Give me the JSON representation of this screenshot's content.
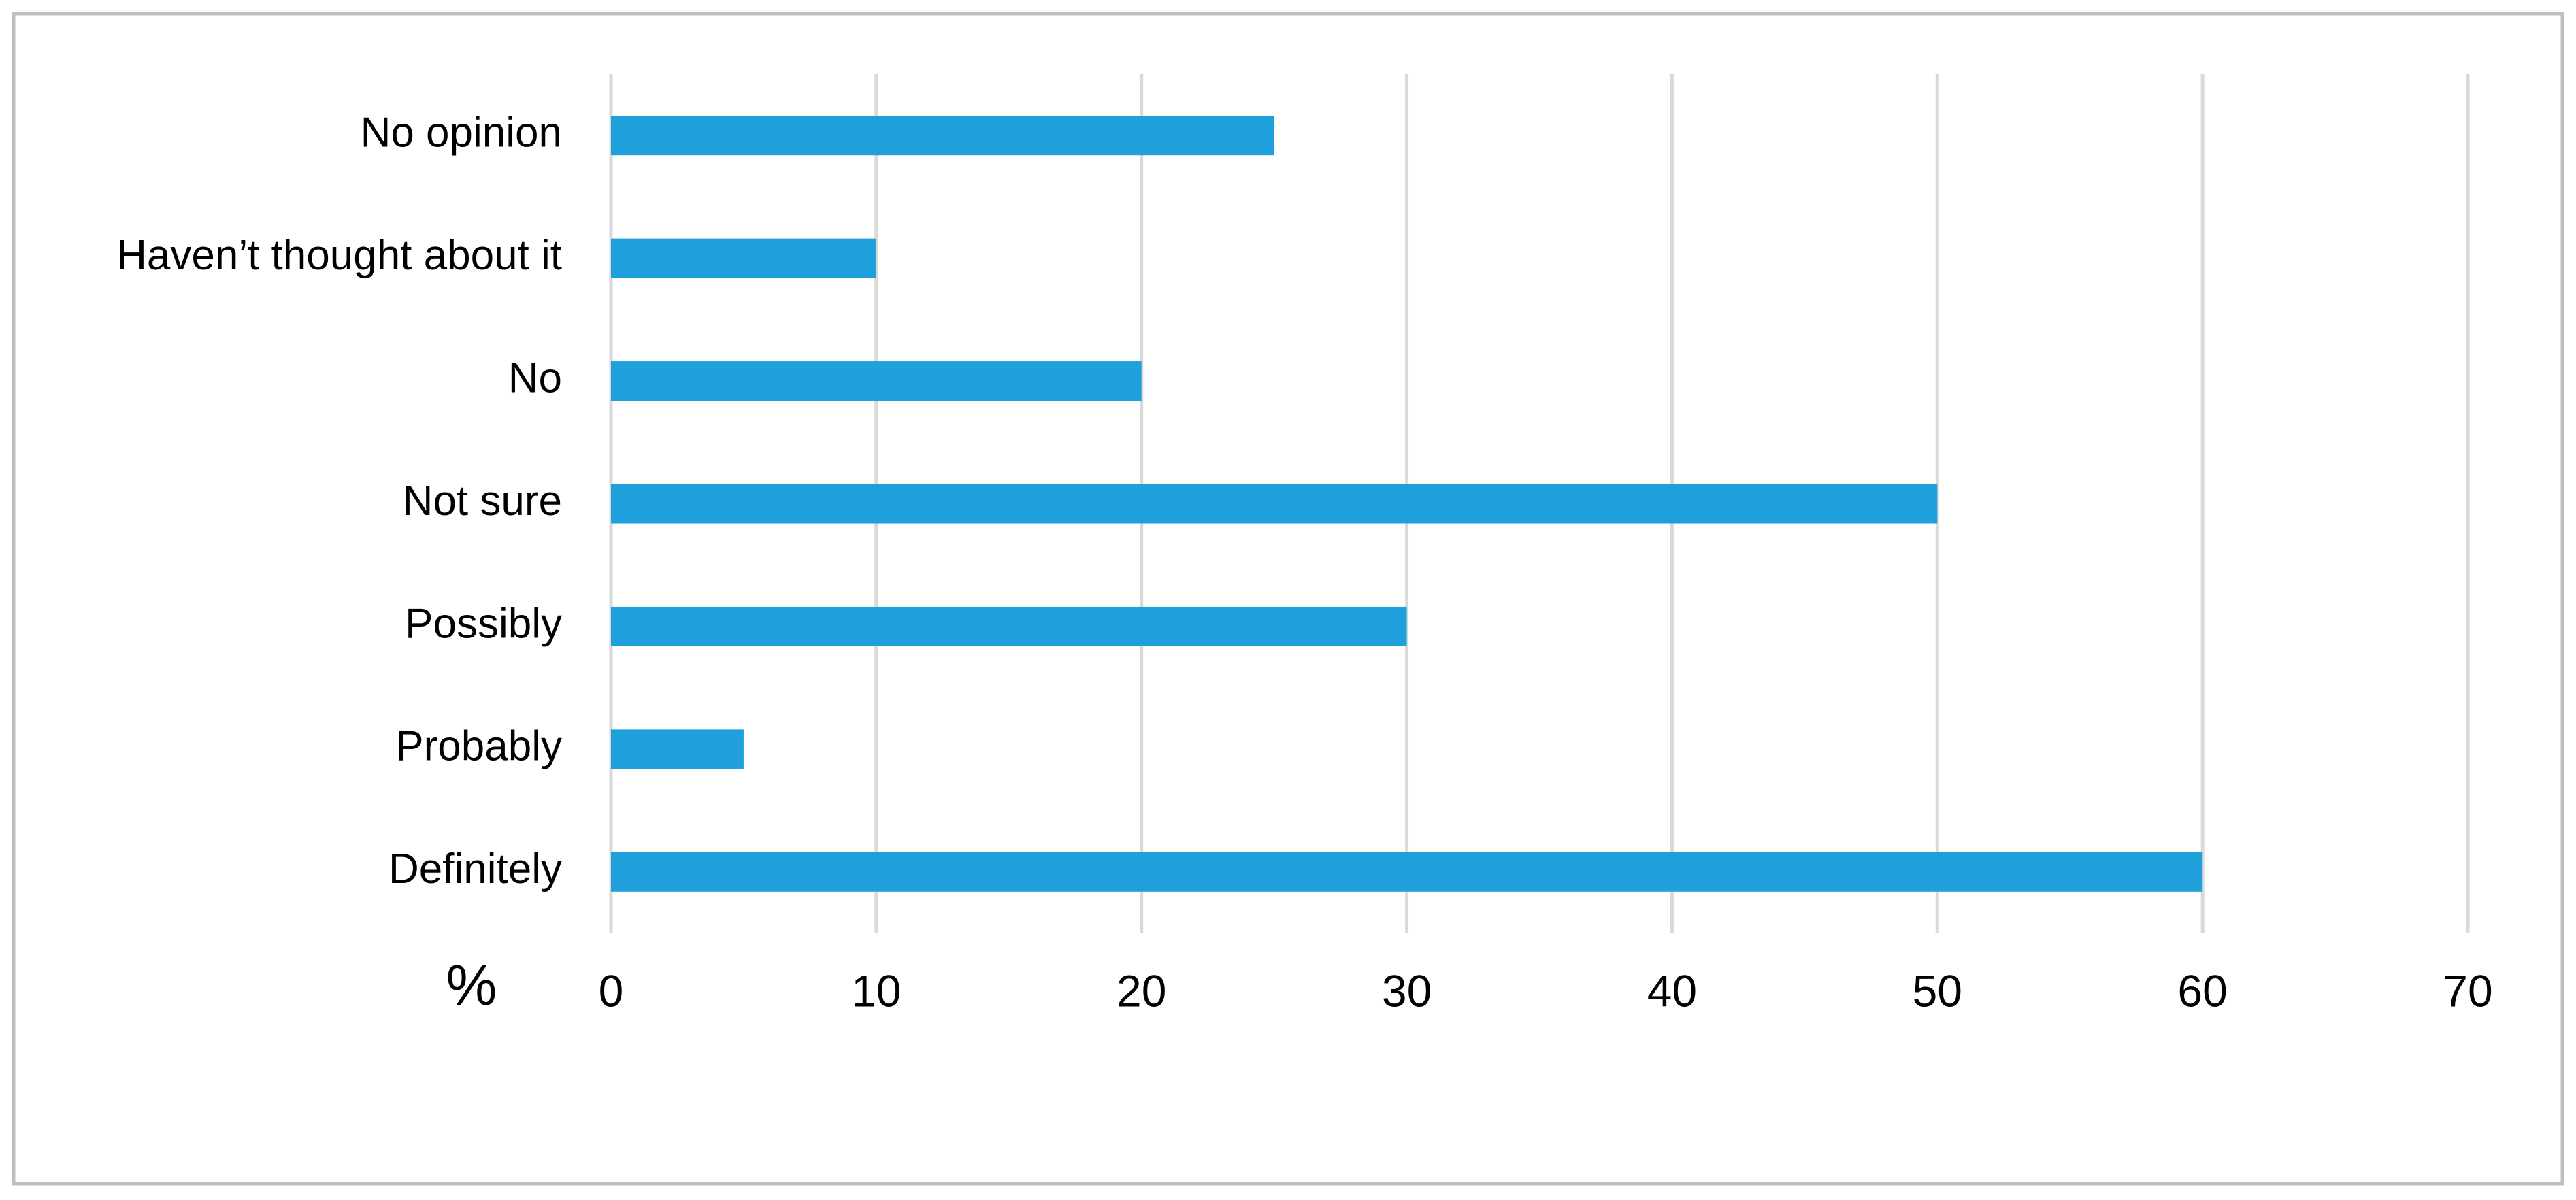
{
  "chart_data": {
    "type": "bar",
    "orientation": "horizontal",
    "categories": [
      "No opinion",
      "Haven’t thought about it",
      "No",
      "Not sure",
      "Possibly",
      "Probably",
      "Definitely"
    ],
    "values": [
      25,
      10,
      20,
      50,
      30,
      5,
      60
    ],
    "color": "#1f9fdb",
    "x_label": "%",
    "xlim": [
      0,
      70
    ],
    "xticks": [
      0,
      10,
      20,
      30,
      40,
      50,
      60,
      70
    ],
    "grid": true
  }
}
